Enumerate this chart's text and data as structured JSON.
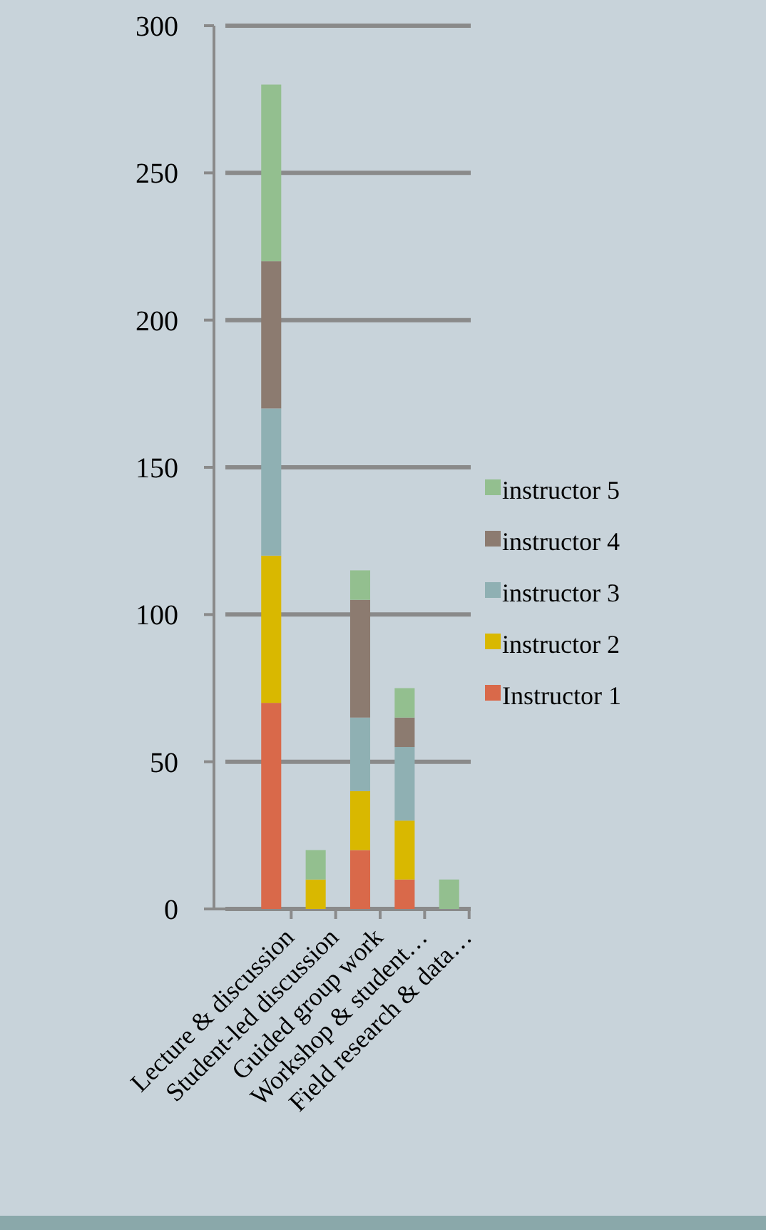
{
  "chart_data": {
    "type": "bar",
    "stacked": true,
    "categories": [
      "Lecture & discussion",
      "Student-led discussion",
      "Guided group work",
      "Workshop & student…",
      "Field research & data…"
    ],
    "series": [
      {
        "name": "Instructor 1",
        "color": "#d9694a",
        "values": [
          70,
          0,
          20,
          10,
          0
        ]
      },
      {
        "name": "instructor 2",
        "color": "#d9b800",
        "values": [
          50,
          10,
          20,
          20,
          0
        ]
      },
      {
        "name": "instructor 3",
        "color": "#8fb0b3",
        "values": [
          50,
          0,
          25,
          25,
          0
        ]
      },
      {
        "name": "instructor 4",
        "color": "#8c7b70",
        "values": [
          50,
          0,
          40,
          10,
          0
        ]
      },
      {
        "name": "instructor 5",
        "color": "#93bf8f",
        "values": [
          60,
          10,
          10,
          10,
          10
        ]
      }
    ],
    "ylim": [
      0,
      300
    ],
    "yticks": [
      0,
      50,
      100,
      150,
      200,
      250,
      300
    ],
    "grid": "y",
    "legend": "right"
  }
}
